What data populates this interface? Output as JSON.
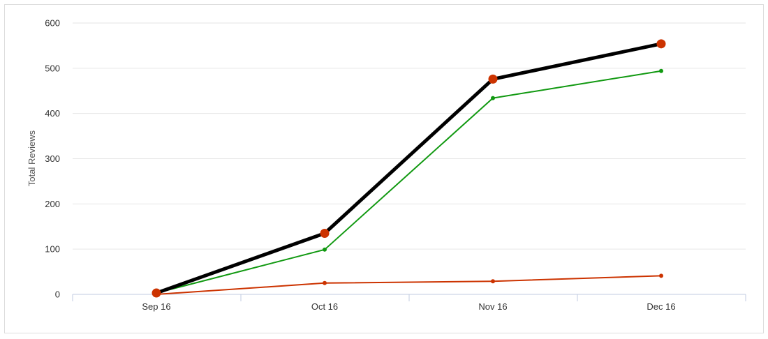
{
  "chart_data": {
    "type": "line",
    "title": "",
    "xlabel": "",
    "ylabel": "Total Reviews",
    "categories": [
      "Sep 16",
      "Oct 16",
      "Nov 16",
      "Dec 16"
    ],
    "ylim": [
      0,
      600
    ],
    "yticks": [
      0,
      100,
      200,
      300,
      400,
      500,
      600
    ],
    "grid": true,
    "legend": "none",
    "series": [
      {
        "values": [
          3,
          135,
          476,
          554
        ],
        "color": "#000000",
        "marker_color": "#cc3300",
        "emphasis": "bold"
      },
      {
        "values": [
          3,
          99,
          434,
          494
        ],
        "color": "#119911",
        "marker_color": "#119911",
        "emphasis": "normal"
      },
      {
        "values": [
          0,
          25,
          29,
          41
        ],
        "color": "#cc3300",
        "marker_color": "#cc3300",
        "emphasis": "normal"
      }
    ]
  }
}
